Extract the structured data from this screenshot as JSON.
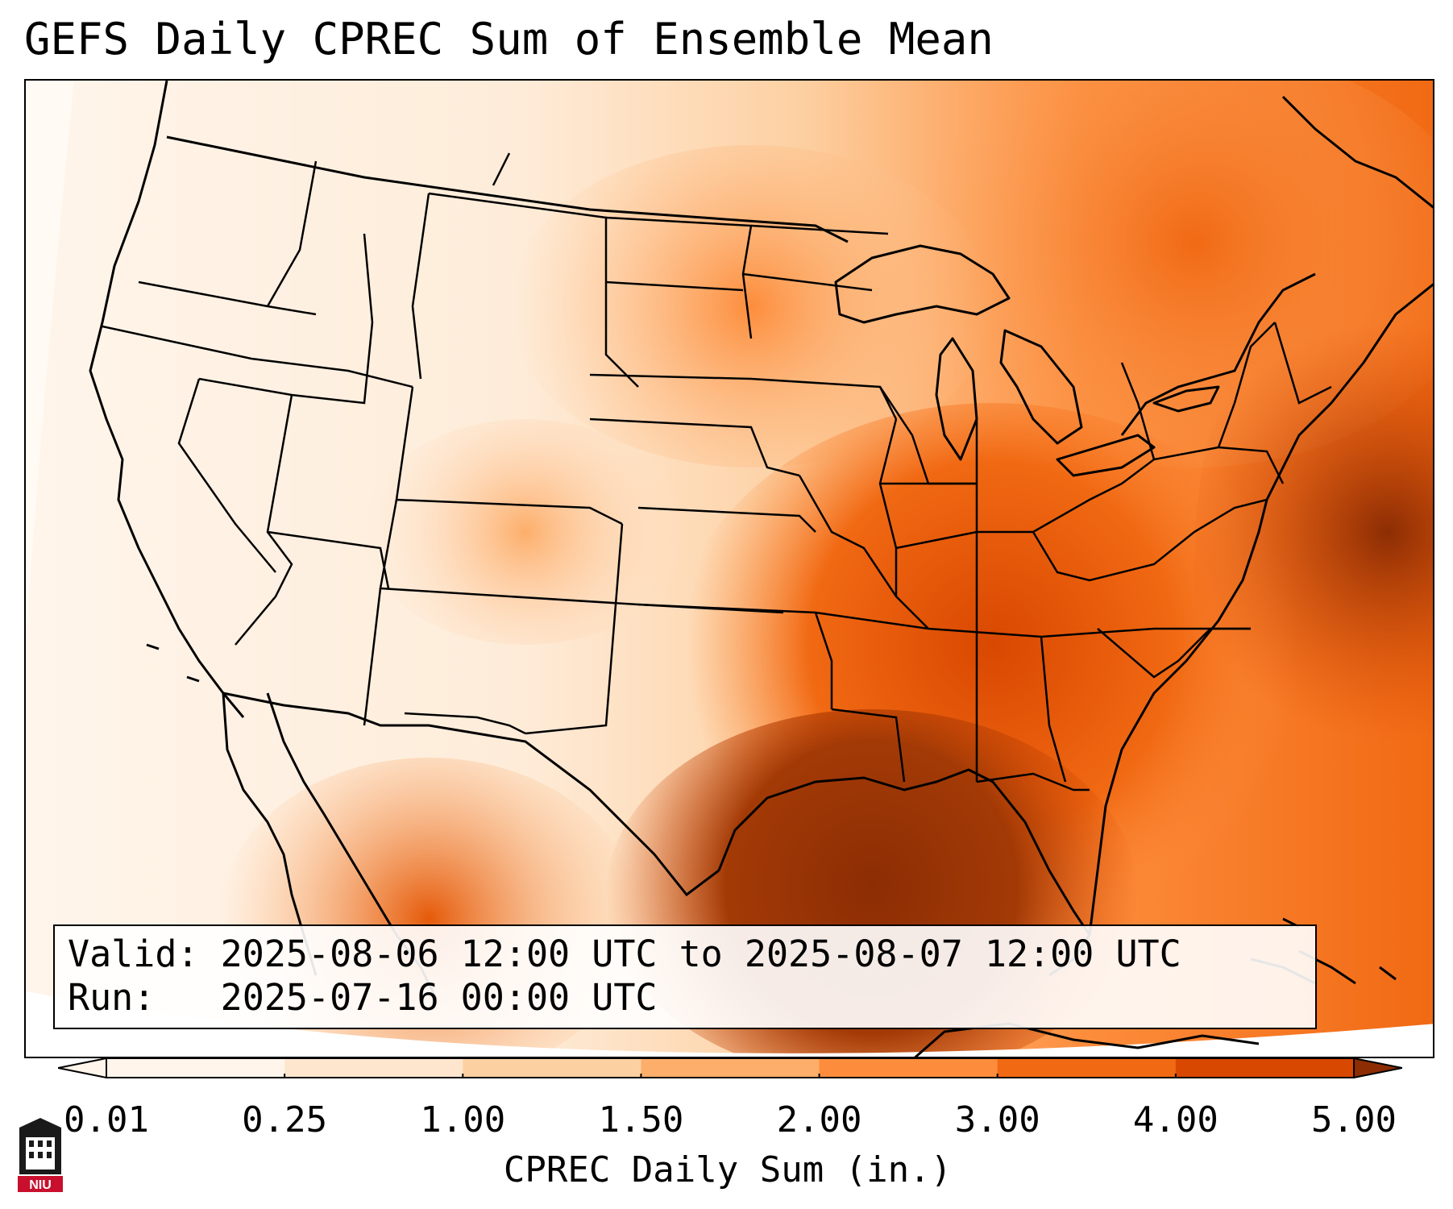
{
  "title": "GEFS Daily CPREC Sum of Ensemble Mean",
  "info": {
    "valid_label": "Valid:",
    "valid_value": "2025-08-06 12:00 UTC to 2025-08-07 12:00 UTC",
    "run_label": "Run:",
    "run_value": "2025-07-16 00:00 UTC"
  },
  "colorbar": {
    "label": "CPREC Daily Sum (in.)",
    "ticks": [
      "0.01",
      "0.25",
      "1.00",
      "1.50",
      "2.00",
      "3.00",
      "4.00",
      "5.00"
    ],
    "colors": [
      "#fff5eb",
      "#fee6ce",
      "#fdd0a2",
      "#fdae6b",
      "#fd8d3c",
      "#f16913",
      "#d94801",
      "#8c2d04"
    ],
    "extend": "both"
  },
  "map": {
    "projection": "Lambert conformal",
    "domain": "Contiguous United States",
    "field": "CPREC daily sum",
    "features": [
      "coastlines",
      "state borders",
      "country borders"
    ]
  },
  "logo": {
    "text": "NIU",
    "color": "#c8102e"
  }
}
